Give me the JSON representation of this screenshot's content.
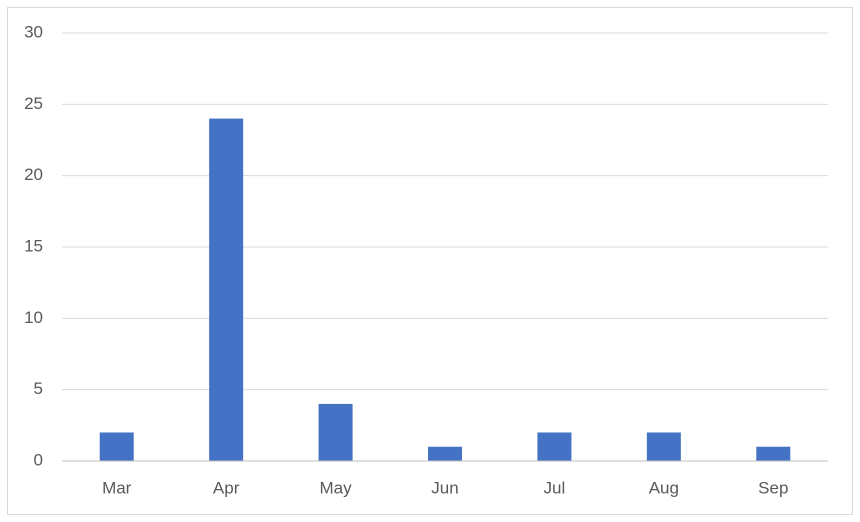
{
  "chart_data": {
    "type": "bar",
    "categories": [
      "Mar",
      "Apr",
      "May",
      "Jun",
      "Jul",
      "Aug",
      "Sep"
    ],
    "values": [
      2,
      24,
      4,
      1,
      2,
      2,
      1
    ],
    "color": "#4472c4",
    "ylim": [
      0,
      30
    ],
    "yticks": [
      0,
      5,
      10,
      15,
      20,
      25,
      30
    ],
    "grid": true
  }
}
